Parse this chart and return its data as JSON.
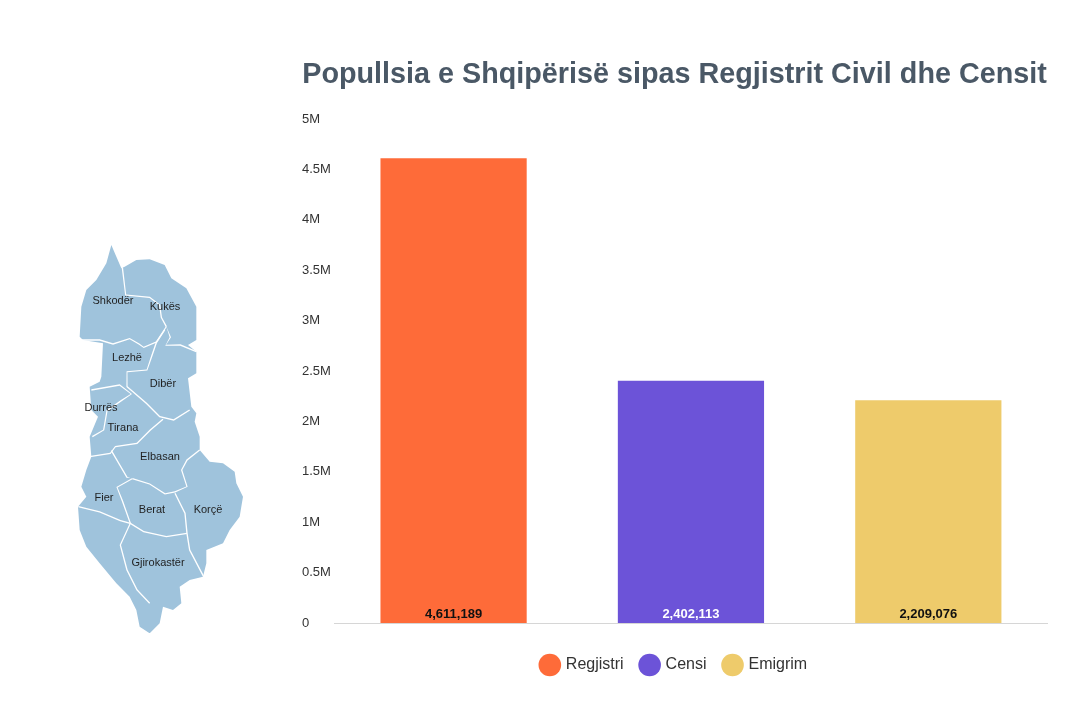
{
  "chart_data": {
    "type": "bar",
    "title": "Popullsia e Shqipërisë sipas Regjistrit Civil dhe Censit",
    "categories": [
      null
    ],
    "series": [
      {
        "name": "Regjistri",
        "color": "#fe6b39",
        "values": [
          4611189
        ],
        "value_labels": [
          "4,611,189"
        ]
      },
      {
        "name": "Censi",
        "color": "#6c53d8",
        "values": [
          2402113
        ],
        "value_labels": [
          "2,402,113"
        ]
      },
      {
        "name": "Emigrim",
        "color": "#eecb6b",
        "values": [
          2209076
        ],
        "value_labels": [
          "2,209,076"
        ]
      }
    ],
    "ylim": [
      0,
      5000000
    ],
    "yticks": [
      0,
      {
        "value": 500000,
        "label": "0.5M"
      },
      {
        "value": 1000000,
        "label": "1M"
      },
      {
        "value": 1500000,
        "label": "1.5M"
      },
      {
        "value": 2000000,
        "label": "2M"
      },
      {
        "value": 2500000,
        "label": "2.5M"
      },
      {
        "value": 3000000,
        "label": "3M"
      },
      {
        "value": 3500000,
        "label": "3.5M"
      },
      {
        "value": 4000000,
        "label": "4M"
      },
      {
        "value": 4500000,
        "label": "4.5M"
      },
      {
        "value": 5000000,
        "label": "5M"
      }
    ],
    "legend": "bottom",
    "annotations": [
      "Shkodër",
      "Kukës",
      "Lezhë",
      "Dibër",
      "Durrës",
      "Tirana",
      "Elbasan",
      "Fier",
      "Berat",
      "Korçë",
      "Gjirokastër"
    ]
  }
}
